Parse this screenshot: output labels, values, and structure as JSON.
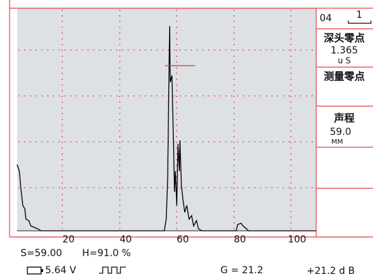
{
  "chart_data": {
    "type": "line",
    "x": [
      2.0,
      2.8,
      3.2,
      4.0,
      4.7,
      5.1,
      6.1,
      6.8,
      9.2,
      10.4,
      53.5,
      54.2,
      54.7,
      55.2,
      55.4,
      55.6,
      56.2,
      56.7,
      57.1,
      57.4,
      57.9,
      58.3,
      58.8,
      59.0,
      59.5,
      60.0,
      60.7,
      61.4,
      62.2,
      63.1,
      63.8,
      64.8,
      65.5,
      66.7,
      78.7,
      79.2,
      80.4,
      81.1,
      82.3,
      83.0,
      106.7
    ],
    "series": [
      {
        "color": "#000000",
        "values": [
          29.8,
          26.8,
          20.6,
          11.4,
          9.8,
          5.2,
          4.6,
          2.2,
          0.9,
          0,
          0,
          5.2,
          23.7,
          72.9,
          92,
          66.8,
          69.8,
          42.2,
          17.5,
          26.8,
          11.4,
          39,
          26.8,
          40.6,
          20.6,
          14.5,
          8.3,
          11.4,
          5.2,
          6.8,
          2.2,
          4.6,
          0.9,
          0,
          0,
          2.8,
          3.4,
          2.2,
          0.9,
          0,
          0
        ]
      }
    ],
    "xlim": [
      2.0,
      106.7
    ],
    "xticks": [
      20,
      40,
      60,
      80,
      100
    ],
    "ylim": [
      0,
      100
    ],
    "gate": {
      "start": 53.8,
      "end": 64.3,
      "level": 74.2,
      "color": "#e8414a"
    }
  },
  "panel": {
    "channel": "04",
    "index": "1",
    "probe_zero_label": "深头零点",
    "probe_zero_value": "1.365",
    "probe_zero_unit": "u S",
    "measure_zero_label": "测量零点",
    "path_label": "声程",
    "path_value": "59.0",
    "path_unit": "MM"
  },
  "status": {
    "s": "S=59.00",
    "h": "H=91.0 %",
    "voltage": "5.64  V",
    "gain": "G = 21.2",
    "db": "+21.2 d B"
  }
}
